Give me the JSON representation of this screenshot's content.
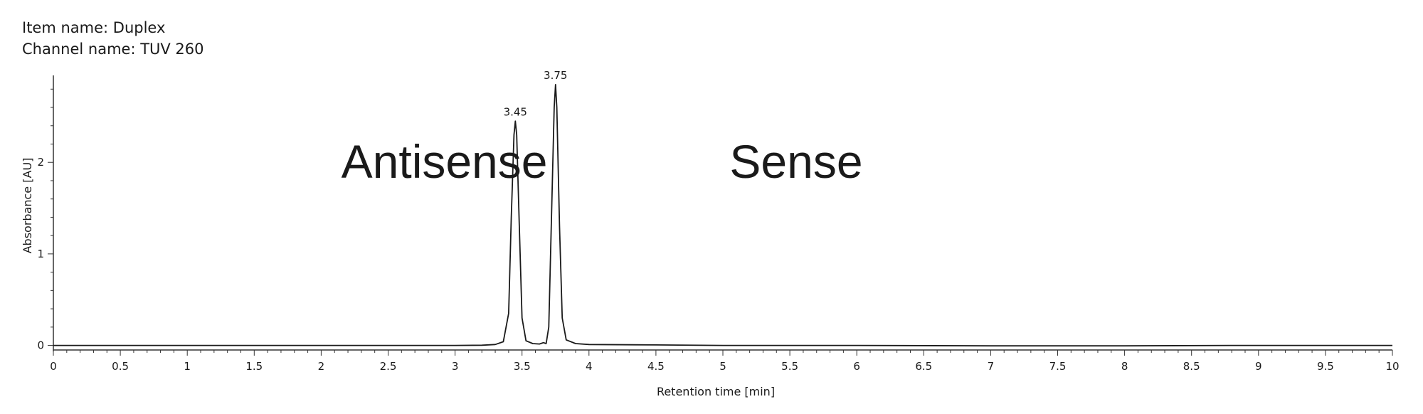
{
  "header": {
    "item_name": "Item name: Duplex",
    "channel_name": "Channel name: TUV 260"
  },
  "chart_data": {
    "type": "line",
    "xlabel": "Retention time [min]",
    "ylabel": "Absorbance [AU]",
    "xlim": [
      0,
      10
    ],
    "ylim": [
      -0.05,
      2.95
    ],
    "x_ticks": [
      {
        "v": 0,
        "label": "0"
      },
      {
        "v": 0.5,
        "label": "0.5"
      },
      {
        "v": 1,
        "label": "1"
      },
      {
        "v": 1.5,
        "label": "1.5"
      },
      {
        "v": 2,
        "label": "2"
      },
      {
        "v": 2.5,
        "label": "2.5"
      },
      {
        "v": 3,
        "label": "3"
      },
      {
        "v": 3.5,
        "label": "3.5"
      },
      {
        "v": 4,
        "label": "4"
      },
      {
        "v": 4.5,
        "label": "4.5"
      },
      {
        "v": 5,
        "label": "5"
      },
      {
        "v": 5.5,
        "label": "5.5"
      },
      {
        "v": 6,
        "label": "6"
      },
      {
        "v": 6.5,
        "label": "6.5"
      },
      {
        "v": 7,
        "label": "7"
      },
      {
        "v": 7.5,
        "label": "7.5"
      },
      {
        "v": 8,
        "label": "8"
      },
      {
        "v": 8.5,
        "label": "8.5"
      },
      {
        "v": 9,
        "label": "9"
      },
      {
        "v": 9.5,
        "label": "9.5"
      },
      {
        "v": 10,
        "label": "10"
      }
    ],
    "y_ticks": [
      {
        "v": 0,
        "label": "0"
      },
      {
        "v": 1,
        "label": "1"
      },
      {
        "v": 2,
        "label": "2"
      }
    ],
    "series": [
      {
        "color": "#1a1a1a",
        "points": [
          [
            0,
            0.0
          ],
          [
            1,
            0.0
          ],
          [
            2,
            0.0
          ],
          [
            3,
            0.0
          ],
          [
            3.2,
            0.002
          ],
          [
            3.3,
            0.01
          ],
          [
            3.36,
            0.04
          ],
          [
            3.4,
            0.35
          ],
          [
            3.42,
            1.4
          ],
          [
            3.44,
            2.3
          ],
          [
            3.45,
            2.45
          ],
          [
            3.46,
            2.3
          ],
          [
            3.48,
            1.3
          ],
          [
            3.5,
            0.3
          ],
          [
            3.53,
            0.05
          ],
          [
            3.58,
            0.02
          ],
          [
            3.63,
            0.015
          ],
          [
            3.66,
            0.03
          ],
          [
            3.68,
            0.02
          ],
          [
            3.7,
            0.2
          ],
          [
            3.72,
            1.4
          ],
          [
            3.74,
            2.6
          ],
          [
            3.75,
            2.85
          ],
          [
            3.76,
            2.6
          ],
          [
            3.78,
            1.3
          ],
          [
            3.8,
            0.3
          ],
          [
            3.83,
            0.06
          ],
          [
            3.9,
            0.02
          ],
          [
            4.0,
            0.01
          ],
          [
            4.5,
            0.005
          ],
          [
            5,
            0.0
          ],
          [
            6,
            0.0
          ],
          [
            7,
            -0.005
          ],
          [
            8,
            -0.005
          ],
          [
            8.8,
            0.0
          ],
          [
            9.5,
            0.0
          ],
          [
            10,
            0.0
          ]
        ]
      }
    ],
    "peak_labels": [
      {
        "x": 3.45,
        "y": 2.45,
        "label": "3.45"
      },
      {
        "x": 3.75,
        "y": 2.85,
        "label": "3.75"
      }
    ],
    "annotations": [
      {
        "text": "Antisense",
        "x": 2.15,
        "y": 2.0
      },
      {
        "text": "Sense",
        "x": 5.05,
        "y": 2.0
      }
    ]
  }
}
